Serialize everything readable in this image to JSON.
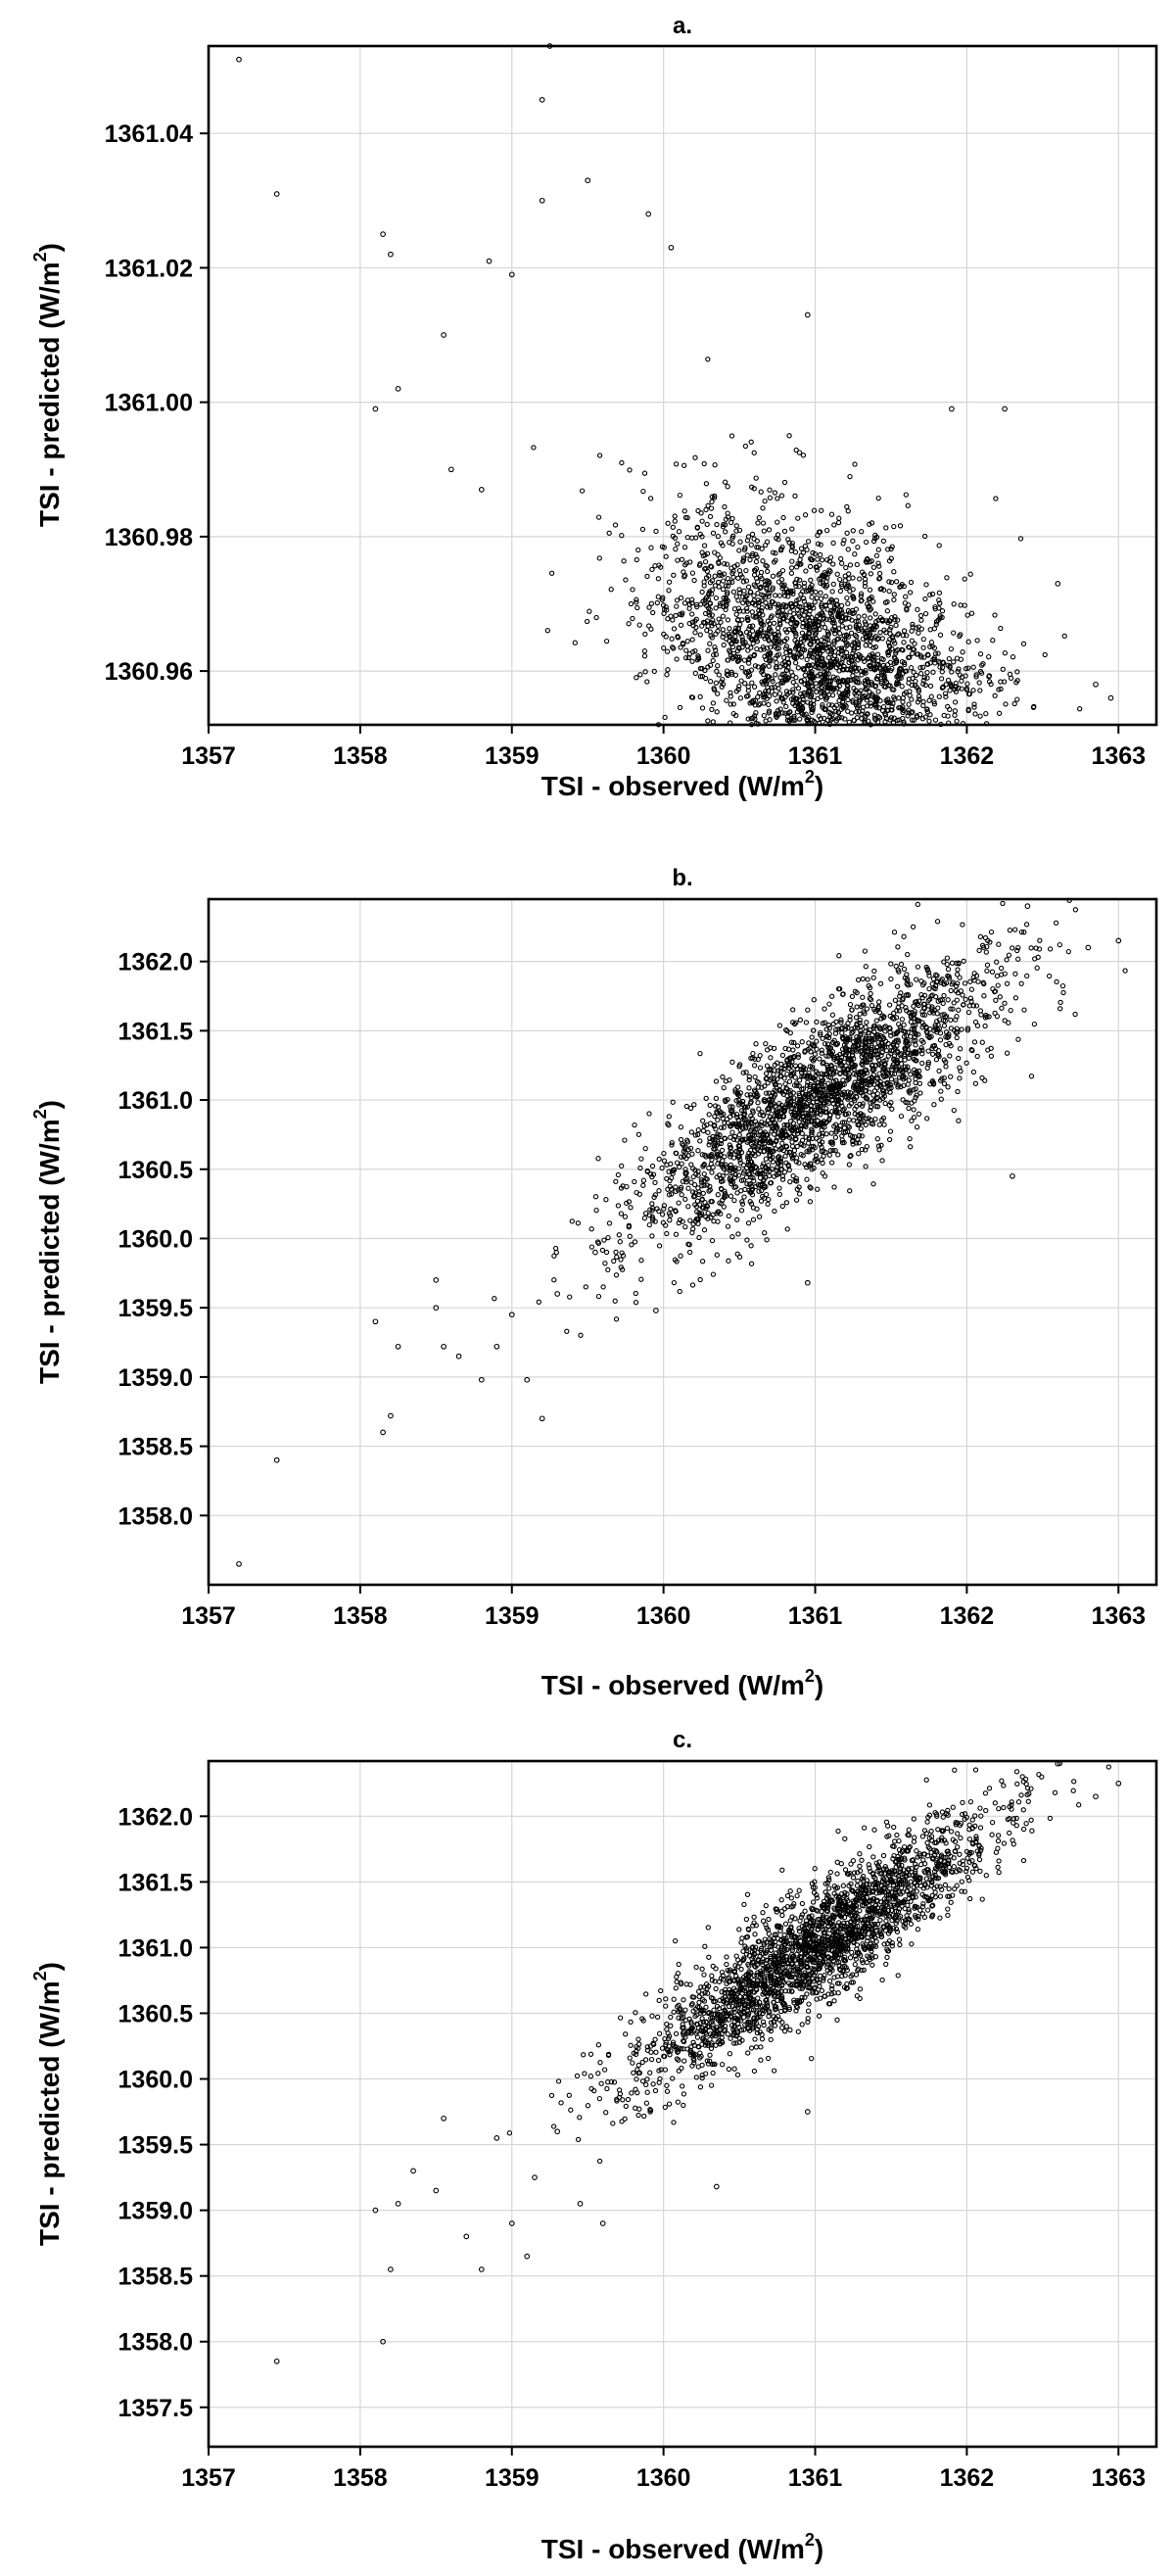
{
  "chart_data": [
    {
      "type": "scatter",
      "title": "a.",
      "xlabel": "TSI - observed (W/m",
      "ylabel": "TSI - predicted (W/m",
      "unit_superscript": "2",
      "unit_close": ")",
      "xlim": [
        1357,
        1363.25
      ],
      "ylim": [
        1360.952,
        1361.053
      ],
      "xticks": [
        1357,
        1358,
        1359,
        1360,
        1361,
        1362,
        1363
      ],
      "xtick_labels": [
        "1357",
        "1358",
        "1359",
        "1360",
        "1361",
        "1362",
        "1363"
      ],
      "yticks": [
        1360.96,
        1360.98,
        1361.0,
        1361.02,
        1361.04
      ],
      "ytick_labels": [
        "1360.96",
        "1360.98",
        "1361.00",
        "1361.02",
        "1361.04"
      ],
      "grid": true,
      "cloud": {
        "n": 2200,
        "center": [
          1361.05,
          1360.962
        ],
        "spread": [
          0.55,
          0.011
        ],
        "correlation": -0.45,
        "floor": 1360.952
      },
      "points": [
        {
          "x": 1357.2,
          "y": 1361.051
        },
        {
          "x": 1357.45,
          "y": 1361.031
        },
        {
          "x": 1358.15,
          "y": 1361.025
        },
        {
          "x": 1358.2,
          "y": 1361.022
        },
        {
          "x": 1358.1,
          "y": 1360.999
        },
        {
          "x": 1358.25,
          "y": 1361.002
        },
        {
          "x": 1358.55,
          "y": 1361.01
        },
        {
          "x": 1358.6,
          "y": 1360.99
        },
        {
          "x": 1358.8,
          "y": 1360.987
        },
        {
          "x": 1358.85,
          "y": 1361.021
        },
        {
          "x": 1359.0,
          "y": 1361.019
        },
        {
          "x": 1359.2,
          "y": 1361.045
        },
        {
          "x": 1359.25,
          "y": 1361.053
        },
        {
          "x": 1359.2,
          "y": 1361.03
        },
        {
          "x": 1359.5,
          "y": 1361.033
        },
        {
          "x": 1359.9,
          "y": 1361.028
        },
        {
          "x": 1360.05,
          "y": 1361.023
        },
        {
          "x": 1360.95,
          "y": 1361.013
        },
        {
          "x": 1361.9,
          "y": 1360.999
        },
        {
          "x": 1362.25,
          "y": 1360.999
        },
        {
          "x": 1362.6,
          "y": 1360.973
        },
        {
          "x": 1362.85,
          "y": 1360.958
        },
        {
          "x": 1362.95,
          "y": 1360.956
        }
      ]
    },
    {
      "type": "scatter",
      "title": "b.",
      "xlabel": "TSI - observed (W/m",
      "ylabel": "TSI - predicted (W/m",
      "unit_superscript": "2",
      "unit_close": ")",
      "xlim": [
        1357,
        1363.25
      ],
      "ylim": [
        1357.5,
        1362.45
      ],
      "xticks": [
        1357,
        1358,
        1359,
        1360,
        1361,
        1362,
        1363
      ],
      "xtick_labels": [
        "1357",
        "1358",
        "1359",
        "1360",
        "1361",
        "1362",
        "1363"
      ],
      "yticks": [
        1358.0,
        1358.5,
        1359.0,
        1359.5,
        1360.0,
        1360.5,
        1361.0,
        1361.5,
        1362.0
      ],
      "ytick_labels": [
        "1358.0",
        "1358.5",
        "1359.0",
        "1359.5",
        "1360.0",
        "1360.5",
        "1361.0",
        "1361.5",
        "1362.0"
      ],
      "grid": true,
      "cloud": {
        "n": 2400,
        "center": [
          1361.0,
          1361.0
        ],
        "spread": [
          0.6,
          0.5
        ],
        "correlation": 0.82,
        "floor": 1357.5
      },
      "points": [
        {
          "x": 1357.2,
          "y": 1357.65
        },
        {
          "x": 1357.45,
          "y": 1358.4
        },
        {
          "x": 1358.15,
          "y": 1358.6
        },
        {
          "x": 1358.2,
          "y": 1358.72
        },
        {
          "x": 1358.1,
          "y": 1359.4
        },
        {
          "x": 1358.25,
          "y": 1359.22
        },
        {
          "x": 1358.5,
          "y": 1359.5
        },
        {
          "x": 1358.5,
          "y": 1359.7
        },
        {
          "x": 1358.55,
          "y": 1359.22
        },
        {
          "x": 1358.65,
          "y": 1359.15
        },
        {
          "x": 1358.8,
          "y": 1358.98
        },
        {
          "x": 1358.9,
          "y": 1359.22
        },
        {
          "x": 1359.1,
          "y": 1358.98
        },
        {
          "x": 1359.2,
          "y": 1358.7
        },
        {
          "x": 1359.0,
          "y": 1359.45
        },
        {
          "x": 1359.3,
          "y": 1359.6
        },
        {
          "x": 1359.55,
          "y": 1359.9
        },
        {
          "x": 1359.95,
          "y": 1359.48
        },
        {
          "x": 1360.95,
          "y": 1359.68
        },
        {
          "x": 1362.3,
          "y": 1360.45
        },
        {
          "x": 1362.8,
          "y": 1362.1
        },
        {
          "x": 1363.0,
          "y": 1362.15
        },
        {
          "x": 1362.4,
          "y": 1362.4
        }
      ]
    },
    {
      "type": "scatter",
      "title": "c.",
      "xlabel": "TSI - observed (W/m",
      "ylabel": "TSI - predicted (W/m",
      "unit_superscript": "2",
      "unit_close": ")",
      "xlim": [
        1357,
        1363.25
      ],
      "ylim": [
        1357.2,
        1362.42
      ],
      "xticks": [
        1357,
        1358,
        1359,
        1360,
        1361,
        1362,
        1363
      ],
      "xtick_labels": [
        "1357",
        "1358",
        "1359",
        "1360",
        "1361",
        "1362",
        "1363"
      ],
      "yticks": [
        1357.5,
        1358.0,
        1358.5,
        1359.0,
        1359.5,
        1360.0,
        1360.5,
        1361.0,
        1361.5,
        1362.0
      ],
      "ytick_labels": [
        "1357.5",
        "1358.0",
        "1358.5",
        "1359.0",
        "1359.5",
        "1360.0",
        "1360.5",
        "1361.0",
        "1361.5",
        "1362.0"
      ],
      "grid": true,
      "cloud": {
        "n": 2400,
        "center": [
          1361.0,
          1361.0
        ],
        "spread": [
          0.6,
          0.52
        ],
        "correlation": 0.9,
        "floor": 1357.2
      },
      "points": [
        {
          "x": 1357.45,
          "y": 1357.85
        },
        {
          "x": 1358.15,
          "y": 1358.0
        },
        {
          "x": 1358.2,
          "y": 1358.55
        },
        {
          "x": 1358.1,
          "y": 1359.0
        },
        {
          "x": 1358.25,
          "y": 1359.05
        },
        {
          "x": 1358.35,
          "y": 1359.3
        },
        {
          "x": 1358.5,
          "y": 1359.15
        },
        {
          "x": 1358.55,
          "y": 1359.7
        },
        {
          "x": 1358.7,
          "y": 1358.8
        },
        {
          "x": 1358.8,
          "y": 1358.55
        },
        {
          "x": 1358.9,
          "y": 1359.55
        },
        {
          "x": 1359.0,
          "y": 1358.9
        },
        {
          "x": 1359.1,
          "y": 1358.65
        },
        {
          "x": 1359.15,
          "y": 1359.25
        },
        {
          "x": 1359.3,
          "y": 1359.6
        },
        {
          "x": 1359.45,
          "y": 1359.05
        },
        {
          "x": 1359.6,
          "y": 1358.9
        },
        {
          "x": 1360.35,
          "y": 1359.18
        },
        {
          "x": 1360.95,
          "y": 1359.75
        },
        {
          "x": 1362.6,
          "y": 1362.4
        },
        {
          "x": 1363.0,
          "y": 1362.25
        },
        {
          "x": 1362.85,
          "y": 1362.15
        }
      ]
    }
  ]
}
